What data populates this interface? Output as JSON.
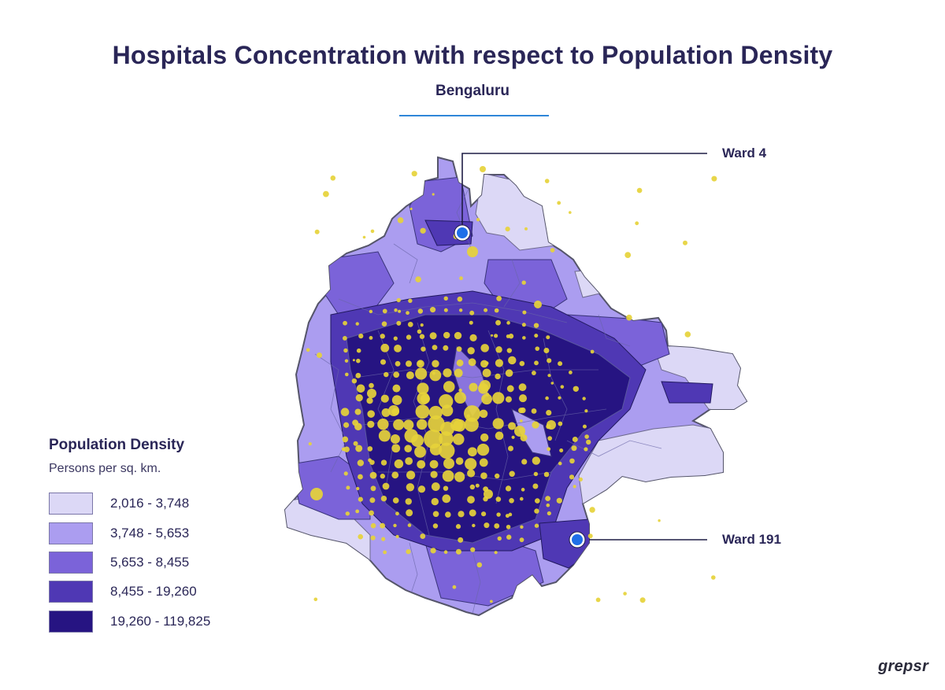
{
  "title": "Hospitals Concentration with respect to Population Density",
  "subtitle": "Bengaluru",
  "callouts": [
    {
      "label": "Ward 4"
    },
    {
      "label": "Ward 191"
    }
  ],
  "legend": {
    "title": "Population Density",
    "subtitle": "Persons per sq. km.",
    "items": [
      {
        "label": "2,016 - 3,748",
        "color": "#dcd8f6"
      },
      {
        "label": "3,748 - 5,653",
        "color": "#ab9df0"
      },
      {
        "label": "5,653 - 8,455",
        "color": "#7b63d9"
      },
      {
        "label": "8,455 - 19,260",
        "color": "#4f38b4"
      },
      {
        "label": "19,260 - 119,825",
        "color": "#261482"
      }
    ]
  },
  "colors": {
    "hospital_marker": "#e6d23a",
    "highlight_marker": "#1f6fe8",
    "accent_rule": "#2f86d8"
  },
  "brand": "grepsr"
}
